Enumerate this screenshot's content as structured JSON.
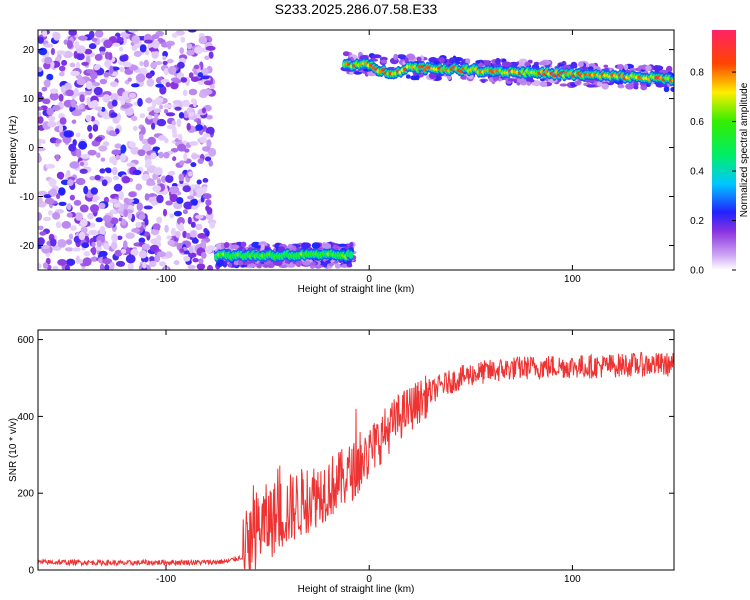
{
  "chart_data": [
    {
      "type": "heatmap",
      "title": "S233.2025.286.07.58.E33",
      "xlabel": "Height of straight line (km)",
      "ylabel": "Frequency (Hz)",
      "xlim": [
        -163,
        150
      ],
      "ylim": [
        -25,
        24
      ],
      "xticks": [
        -100,
        0,
        100
      ],
      "yticks": [
        -20,
        -10,
        0,
        10,
        20
      ],
      "colorbar": {
        "label": "Normalized spectral amplitude",
        "range": [
          0,
          0.97
        ],
        "ticks": [
          0.0,
          0.2,
          0.4,
          0.6,
          0.8
        ]
      },
      "regions": [
        {
          "name": "noise",
          "x_range": [
            -163,
            -77
          ],
          "y_range": [
            -25,
            24
          ],
          "mean_amplitude": 0.15
        },
        {
          "name": "signal-low",
          "x_range": [
            -75,
            -8
          ],
          "freq_hz": -22,
          "mean_amplitude": 0.6
        },
        {
          "name": "signal-high",
          "x_range": [
            -12,
            150
          ],
          "freq_hz": [
            17,
            14
          ],
          "mean_amplitude": 0.8
        }
      ]
    },
    {
      "type": "line",
      "xlabel": "Height of straight line (km)",
      "ylabel": "SNR (10 * v/v)",
      "xlim": [
        -163,
        150
      ],
      "ylim": [
        0,
        625
      ],
      "xticks": [
        -100,
        0,
        100
      ],
      "yticks": [
        0,
        200,
        400,
        600
      ],
      "series": [
        {
          "name": "SNR",
          "color": "#ee3333",
          "x": [
            -163,
            -140,
            -120,
            -100,
            -80,
            -70,
            -62,
            -55,
            -45,
            -35,
            -25,
            -15,
            -5,
            5,
            15,
            25,
            35,
            50,
            70,
            90,
            110,
            130,
            150
          ],
          "values": [
            20,
            20,
            18,
            20,
            20,
            22,
            35,
            110,
            140,
            170,
            200,
            230,
            270,
            340,
            400,
            440,
            480,
            510,
            525,
            530,
            530,
            535,
            535
          ]
        }
      ]
    }
  ]
}
